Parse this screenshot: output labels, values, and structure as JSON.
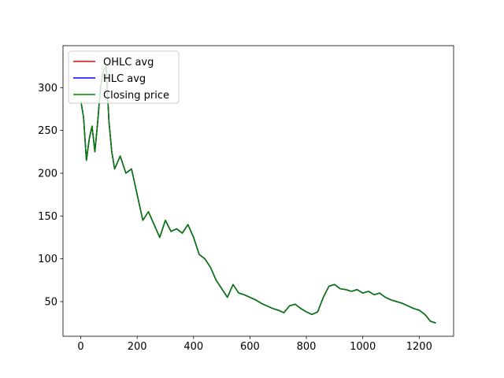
{
  "chart_data": {
    "type": "line",
    "x": [
      0,
      10,
      20,
      30,
      40,
      50,
      60,
      70,
      80,
      90,
      100,
      110,
      120,
      140,
      160,
      180,
      200,
      220,
      240,
      260,
      280,
      300,
      320,
      340,
      360,
      380,
      400,
      420,
      440,
      460,
      480,
      500,
      520,
      540,
      560,
      580,
      600,
      620,
      640,
      660,
      680,
      700,
      720,
      740,
      760,
      780,
      800,
      820,
      840,
      860,
      880,
      900,
      920,
      940,
      960,
      980,
      1000,
      1020,
      1040,
      1060,
      1080,
      1100,
      1120,
      1140,
      1160,
      1180,
      1200,
      1220,
      1240,
      1259
    ],
    "series": [
      {
        "name": "OHLC avg",
        "color": "#ff0000",
        "values": [
          285,
          265,
          215,
          240,
          255,
          225,
          260,
          300,
          320,
          325,
          260,
          225,
          205,
          220,
          200,
          205,
          175,
          145,
          155,
          140,
          125,
          145,
          132,
          135,
          130,
          140,
          125,
          105,
          100,
          90,
          75,
          65,
          55,
          70,
          60,
          58,
          55,
          52,
          48,
          45,
          42,
          40,
          37,
          45,
          47,
          42,
          38,
          35,
          38,
          55,
          68,
          70,
          65,
          64,
          62,
          64,
          60,
          62,
          58,
          60,
          55,
          52,
          50,
          48,
          45,
          42,
          40,
          35,
          27,
          25
        ]
      },
      {
        "name": "HLC avg",
        "color": "#0000ff",
        "values": [
          285,
          265,
          215,
          240,
          255,
          225,
          260,
          300,
          320,
          325,
          260,
          225,
          205,
          220,
          200,
          205,
          175,
          145,
          155,
          140,
          125,
          145,
          132,
          135,
          130,
          140,
          125,
          105,
          100,
          90,
          75,
          65,
          55,
          70,
          60,
          58,
          55,
          52,
          48,
          45,
          42,
          40,
          37,
          45,
          47,
          42,
          38,
          35,
          38,
          55,
          68,
          70,
          65,
          64,
          62,
          64,
          60,
          62,
          58,
          60,
          55,
          52,
          50,
          48,
          45,
          42,
          40,
          35,
          27,
          25
        ]
      },
      {
        "name": "Closing price",
        "color": "#008000",
        "values": [
          285,
          265,
          215,
          240,
          255,
          225,
          260,
          300,
          320,
          325,
          260,
          225,
          205,
          220,
          200,
          205,
          175,
          145,
          155,
          140,
          125,
          145,
          132,
          135,
          130,
          140,
          125,
          105,
          100,
          90,
          75,
          65,
          55,
          70,
          60,
          58,
          55,
          52,
          48,
          45,
          42,
          40,
          37,
          45,
          47,
          42,
          38,
          35,
          38,
          55,
          68,
          70,
          65,
          64,
          62,
          64,
          60,
          62,
          58,
          60,
          55,
          52,
          50,
          48,
          45,
          42,
          40,
          35,
          27,
          25
        ]
      }
    ],
    "xlim": [
      -63,
      1322
    ],
    "xticks": [
      0,
      200,
      400,
      600,
      800,
      1000,
      1200
    ],
    "ylim": [
      9.5,
      349
    ],
    "yticks": [
      50,
      100,
      150,
      200,
      250,
      300
    ],
    "legend": "upper left"
  }
}
